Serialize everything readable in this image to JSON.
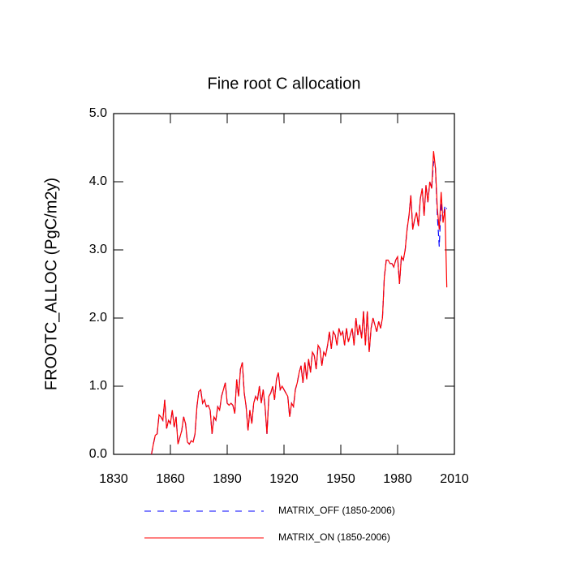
{
  "chart_data": {
    "type": "line",
    "title": "Fine root C allocation",
    "y_label": "FROOTC_ALLOC  (PgC/m2y)",
    "x": [
      1850,
      1851,
      1852,
      1853,
      1854,
      1855,
      1856,
      1857,
      1858,
      1859,
      1860,
      1861,
      1862,
      1863,
      1864,
      1865,
      1866,
      1867,
      1868,
      1869,
      1870,
      1871,
      1872,
      1873,
      1874,
      1875,
      1876,
      1877,
      1878,
      1879,
      1880,
      1881,
      1882,
      1883,
      1884,
      1885,
      1886,
      1887,
      1888,
      1889,
      1890,
      1891,
      1892,
      1893,
      1894,
      1895,
      1896,
      1897,
      1898,
      1899,
      1900,
      1901,
      1902,
      1903,
      1904,
      1905,
      1906,
      1907,
      1908,
      1909,
      1910,
      1911,
      1912,
      1913,
      1914,
      1915,
      1916,
      1917,
      1918,
      1919,
      1920,
      1921,
      1922,
      1923,
      1924,
      1925,
      1926,
      1927,
      1928,
      1929,
      1930,
      1931,
      1932,
      1933,
      1934,
      1935,
      1936,
      1937,
      1938,
      1939,
      1940,
      1941,
      1942,
      1943,
      1944,
      1945,
      1946,
      1947,
      1948,
      1949,
      1950,
      1951,
      1952,
      1953,
      1954,
      1955,
      1956,
      1957,
      1958,
      1959,
      1960,
      1961,
      1962,
      1963,
      1964,
      1965,
      1966,
      1967,
      1968,
      1969,
      1970,
      1971,
      1972,
      1973,
      1974,
      1975,
      1976,
      1977,
      1978,
      1979,
      1980,
      1981,
      1982,
      1983,
      1984,
      1985,
      1986,
      1987,
      1988,
      1989,
      1990,
      1991,
      1992,
      1993,
      1994,
      1995,
      1996,
      1997,
      1998,
      1999,
      2000,
      2001,
      2002,
      2003,
      2004,
      2005,
      2006
    ],
    "series": [
      {
        "name": "MATRIX_OFF (1850-2006)",
        "color": "#0000ff",
        "dash": true,
        "values": [
          0.0,
          0.15,
          0.28,
          0.3,
          0.58,
          0.55,
          0.5,
          0.8,
          0.38,
          0.5,
          0.45,
          0.65,
          0.4,
          0.55,
          0.15,
          0.25,
          0.35,
          0.55,
          0.45,
          0.18,
          0.15,
          0.2,
          0.18,
          0.3,
          0.7,
          0.92,
          0.95,
          0.75,
          0.8,
          0.7,
          0.72,
          0.65,
          0.3,
          0.55,
          0.5,
          0.7,
          0.65,
          0.85,
          0.95,
          1.05,
          0.75,
          0.72,
          0.75,
          0.72,
          0.6,
          1.1,
          0.85,
          1.25,
          1.35,
          0.9,
          0.7,
          0.35,
          0.65,
          0.45,
          0.75,
          0.85,
          0.8,
          1.0,
          0.75,
          0.95,
          0.7,
          0.3,
          0.85,
          0.9,
          1.0,
          0.8,
          1.1,
          1.2,
          0.95,
          1.0,
          0.95,
          0.9,
          0.85,
          0.55,
          0.75,
          0.7,
          0.95,
          1.05,
          1.2,
          1.3,
          1.05,
          1.35,
          1.1,
          1.4,
          1.2,
          1.5,
          1.45,
          1.25,
          1.6,
          1.55,
          1.3,
          1.5,
          1.45,
          1.6,
          1.8,
          1.55,
          1.8,
          1.75,
          1.6,
          1.85,
          1.75,
          1.8,
          1.6,
          1.85,
          1.65,
          1.75,
          1.85,
          1.6,
          2.0,
          1.75,
          1.9,
          1.7,
          2.1,
          1.6,
          2.1,
          1.5,
          1.85,
          2.0,
          1.9,
          1.8,
          1.95,
          1.85,
          2.0,
          2.6,
          2.85,
          2.85,
          2.8,
          2.8,
          2.75,
          2.85,
          2.9,
          2.5,
          2.9,
          2.85,
          3.0,
          3.3,
          3.5,
          3.8,
          3.3,
          3.45,
          3.55,
          3.35,
          3.75,
          3.9,
          3.5,
          3.95,
          3.7,
          4.0,
          3.9,
          4.3,
          4.2,
          3.5,
          3.05,
          3.7,
          3.45,
          3.65,
          3.6
        ]
      },
      {
        "name": "MATRIX_ON (1850-2006)",
        "color": "#ff0000",
        "dash": false,
        "values": [
          0.0,
          0.15,
          0.28,
          0.3,
          0.58,
          0.55,
          0.5,
          0.8,
          0.38,
          0.5,
          0.45,
          0.65,
          0.4,
          0.55,
          0.15,
          0.25,
          0.35,
          0.55,
          0.45,
          0.18,
          0.15,
          0.2,
          0.18,
          0.3,
          0.7,
          0.92,
          0.95,
          0.75,
          0.8,
          0.7,
          0.72,
          0.65,
          0.3,
          0.55,
          0.5,
          0.7,
          0.65,
          0.85,
          0.95,
          1.05,
          0.75,
          0.72,
          0.75,
          0.72,
          0.6,
          1.1,
          0.85,
          1.25,
          1.35,
          0.9,
          0.7,
          0.35,
          0.65,
          0.45,
          0.75,
          0.85,
          0.8,
          1.0,
          0.75,
          0.95,
          0.7,
          0.3,
          0.85,
          0.9,
          1.0,
          0.8,
          1.1,
          1.2,
          0.95,
          1.0,
          0.95,
          0.9,
          0.85,
          0.55,
          0.75,
          0.7,
          0.95,
          1.05,
          1.2,
          1.3,
          1.05,
          1.35,
          1.1,
          1.4,
          1.2,
          1.5,
          1.45,
          1.25,
          1.6,
          1.55,
          1.3,
          1.5,
          1.45,
          1.6,
          1.8,
          1.55,
          1.8,
          1.75,
          1.6,
          1.85,
          1.75,
          1.8,
          1.6,
          1.85,
          1.65,
          1.75,
          1.85,
          1.6,
          2.0,
          1.75,
          1.9,
          1.7,
          2.1,
          1.6,
          2.1,
          1.5,
          1.85,
          2.0,
          1.9,
          1.8,
          1.95,
          1.85,
          2.0,
          2.6,
          2.85,
          2.85,
          2.8,
          2.8,
          2.75,
          2.85,
          2.9,
          2.5,
          2.9,
          2.85,
          3.0,
          3.3,
          3.5,
          3.8,
          3.3,
          3.45,
          3.55,
          3.35,
          3.75,
          3.9,
          3.5,
          3.95,
          3.7,
          4.0,
          3.9,
          4.45,
          4.2,
          3.6,
          3.3,
          3.85,
          3.4,
          3.6,
          2.45
        ]
      }
    ],
    "xlim": [
      1830,
      2010
    ],
    "xticks": [
      1830,
      1860,
      1890,
      1920,
      1950,
      1980,
      2010
    ],
    "ylim": [
      0,
      5
    ],
    "yticks": [
      {
        "value": 0,
        "label": "0.0"
      },
      {
        "value": 1,
        "label": "1.0"
      },
      {
        "value": 2,
        "label": "2.0"
      },
      {
        "value": 3,
        "label": "3.0"
      },
      {
        "value": 4,
        "label": "4.0"
      },
      {
        "value": 5,
        "label": "5.0"
      }
    ]
  }
}
